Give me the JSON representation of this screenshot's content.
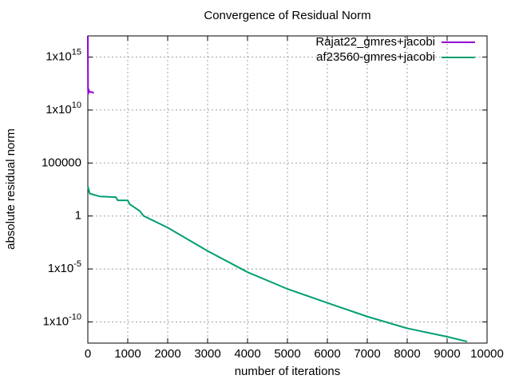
{
  "chart_data": {
    "type": "line",
    "title": "Convergence of Residual Norm",
    "xlabel": "number of iterations",
    "ylabel": "absolute residual norm",
    "log_y": true,
    "grid": true,
    "legend": "top-right",
    "xlim": [
      0,
      10000
    ],
    "xticks": [
      0,
      1000,
      2000,
      3000,
      4000,
      5000,
      6000,
      7000,
      8000,
      9000,
      10000
    ],
    "ylim": [
      1e-12,
      1e+17
    ],
    "yticks": [
      {
        "value": 1e-10,
        "label": "1x10",
        "sup": "-10"
      },
      {
        "value": 1e-05,
        "label": "1x10",
        "sup": "-5"
      },
      1,
      100000,
      {
        "value": 10000000000.0,
        "label": "1x10",
        "sup": "10"
      },
      {
        "value": 1000000000000000.0,
        "label": "1x10",
        "sup": "15"
      }
    ],
    "series": [
      {
        "name": "Rajat22_gmres+jacobi",
        "color": "#9400d3",
        "x": [
          0,
          5,
          10,
          20,
          30,
          50,
          100,
          150
        ],
        "values": [
          1e+17,
          1000000000000.0,
          300000000000.0,
          1000000000000.0,
          600000000000.0,
          500000000000.0,
          500000000000.0,
          400000000000.0
        ]
      },
      {
        "name": "af23560-gmres+jacobi",
        "color": "#009e73",
        "x": [
          0,
          50,
          300,
          700,
          750,
          1000,
          1050,
          1300,
          1400,
          2000,
          3000,
          4000,
          5000,
          6000,
          7000,
          8000,
          9000,
          9500
        ],
        "values": [
          600,
          130,
          70,
          60,
          30,
          30,
          13,
          3,
          1,
          0.08,
          0.0005,
          5e-06,
          1.3e-07,
          6.3e-09,
          3.2e-10,
          2.5e-11,
          4e-12,
          1.4e-12
        ]
      }
    ]
  }
}
